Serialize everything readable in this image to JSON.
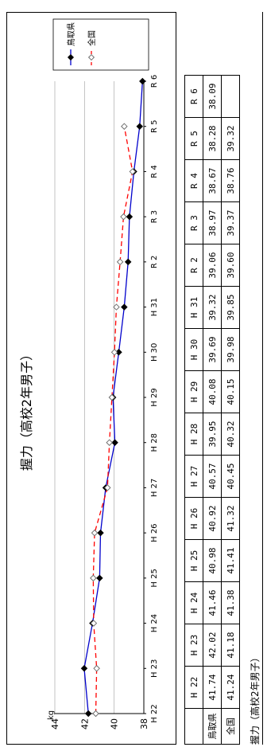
{
  "caption": "握力（高校2年男子）",
  "table": {
    "years": [
      "H 22",
      "H 23",
      "H 24",
      "H 25",
      "H 26",
      "H 27",
      "H 28",
      "H 29",
      "H 30",
      "H 31",
      "R 2",
      "R 3",
      "R 4",
      "R 5",
      "R 6"
    ],
    "rows": [
      {
        "label": "鳥取県",
        "values": [
          "41.74",
          "42.02",
          "41.46",
          "40.98",
          "40.92",
          "40.57",
          "39.95",
          "40.08",
          "39.69",
          "39.32",
          "39.06",
          "38.97",
          "38.67",
          "38.28",
          "38.09"
        ]
      },
      {
        "label": "全国",
        "values": [
          "41.24",
          "41.18",
          "41.38",
          "41.41",
          "41.32",
          "40.45",
          "40.32",
          "40.15",
          "39.98",
          "39.85",
          "39.60",
          "39.37",
          "38.76",
          "39.32",
          ""
        ]
      }
    ]
  },
  "chart_data": {
    "type": "line",
    "title": "握力（高校2年男子）",
    "ylabel": "kg",
    "xlabel": "",
    "ylim": [
      38,
      44
    ],
    "yticks": [
      "38",
      "40",
      "42",
      "44"
    ],
    "categories": [
      "H 22",
      "H 23",
      "H 24",
      "H 25",
      "H 26",
      "H 27",
      "H 28",
      "H 29",
      "H 30",
      "H 31",
      "R 2",
      "R 3",
      "R 4",
      "R 5",
      "R 6"
    ],
    "grid": true,
    "legend_position": "right",
    "series": [
      {
        "name": "鳥取県",
        "color": "#0000cc",
        "marker": "filled-diamond",
        "values": [
          41.74,
          42.02,
          41.46,
          40.98,
          40.92,
          40.57,
          39.95,
          40.08,
          39.69,
          39.32,
          39.06,
          38.97,
          38.67,
          38.28,
          38.09
        ]
      },
      {
        "name": "全国",
        "color": "#ff0000",
        "marker": "open-diamond",
        "dashed": true,
        "values": [
          41.24,
          41.18,
          41.38,
          41.41,
          41.32,
          40.45,
          40.32,
          40.15,
          39.98,
          39.85,
          39.6,
          39.37,
          38.76,
          39.32,
          null
        ]
      }
    ]
  }
}
